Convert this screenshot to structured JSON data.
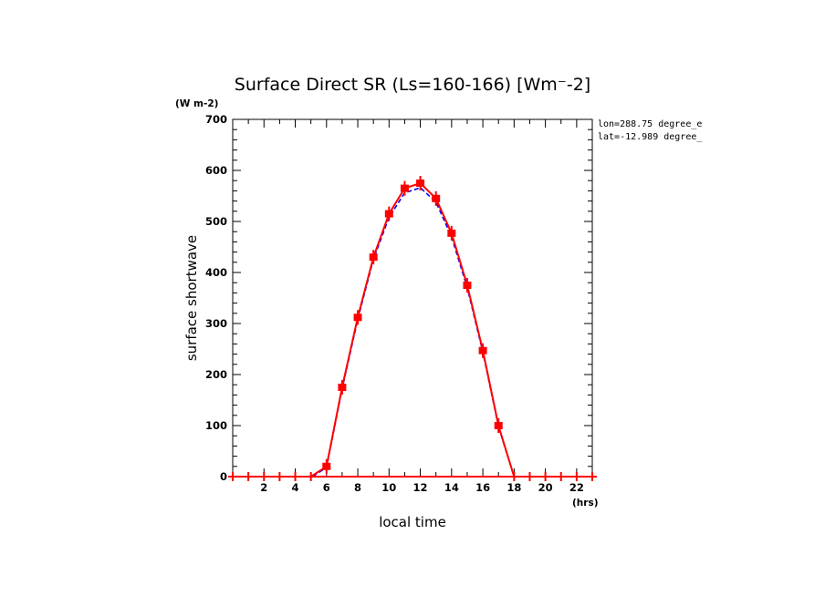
{
  "chart_data": {
    "type": "line",
    "title": "Surface Direct SR (Ls=160-166) [Wm⁻-2]",
    "yunits": "(W m-2)",
    "xunits": "(hrs)",
    "xlabel": "local time",
    "ylabel": "surface shortwave",
    "annotations": [
      "lon=288.75 degree_e",
      "lat=-12.989 degree_"
    ],
    "xlim": [
      0,
      23
    ],
    "ylim": [
      0,
      700
    ],
    "xticks": [
      2,
      4,
      6,
      8,
      10,
      12,
      14,
      16,
      18,
      20,
      22
    ],
    "yticks": [
      0,
      100,
      200,
      300,
      400,
      500,
      600,
      700
    ],
    "grid": false,
    "series": [
      {
        "color": "#0000ff",
        "style": "dashed",
        "x": [
          0,
          1,
          2,
          3,
          4,
          5,
          5.1,
          6,
          7,
          8,
          9,
          10,
          11,
          12,
          13,
          14,
          15,
          16,
          17,
          18
        ],
        "y": [
          0,
          0,
          0,
          0,
          0,
          0,
          0,
          18,
          172,
          308,
          426,
          508,
          556,
          566,
          538,
          470,
          370,
          244,
          98,
          0
        ]
      },
      {
        "color": "#ff0000",
        "style": "solid",
        "markers": true,
        "x": [
          0,
          1,
          2,
          3,
          4,
          5,
          6,
          7,
          8,
          9,
          10,
          11,
          12,
          13,
          14,
          15,
          16,
          17,
          18
        ],
        "y": [
          0,
          0,
          0,
          0,
          0,
          0,
          20,
          175,
          312,
          430,
          515,
          565,
          575,
          545,
          477,
          375,
          247,
          100,
          0
        ]
      },
      {
        "color": "#ff0000",
        "style": "markers",
        "x": [
          19,
          20,
          21,
          22,
          23
        ],
        "y": [
          0,
          0,
          0,
          0,
          0
        ]
      }
    ]
  }
}
